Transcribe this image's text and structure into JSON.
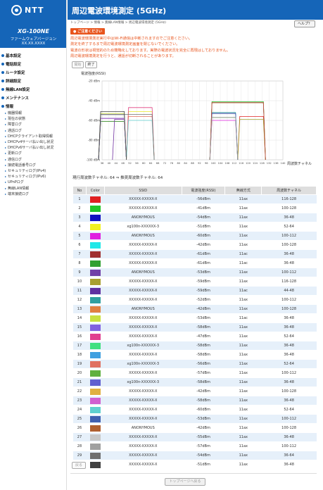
{
  "brand": {
    "logo": "NTT",
    "model": "XG-100NE",
    "fw_label": "ファームウェアバージョン",
    "fw_value": "XX.XX.XXXX"
  },
  "menu": [
    {
      "label": "基本設定"
    },
    {
      "label": "電話設定"
    },
    {
      "label": "ルータ設定"
    },
    {
      "label": "詳細設定"
    },
    {
      "label": "無線LAN設定"
    },
    {
      "label": "メンテナンス"
    },
    {
      "label": "情報"
    }
  ],
  "submenu": [
    "機器情報",
    "現在の状態",
    "障害ログ",
    "通話ログ",
    "DHCPクライアント取得情報",
    "DHCPv4サーバ払い出し状況",
    "DHCPv6サーバ払い出し状況",
    "更新ログ",
    "通信ログ",
    "接続電話番号ログ",
    "セキュリティログ(IPv4)",
    "セキュリティログ(IPv6)",
    "UPnPログ",
    "無線LAN情報",
    "端末接続ログ"
  ],
  "header": {
    "title": "周辺電波環境測定 (5GHz)",
    "breadcrumb": "トップページ > 情報 > 無線LAN情報 > 周辺電波環境測定 (5GHz)",
    "help": "ヘルプ？"
  },
  "notice": {
    "title": "ご注意ください",
    "lines": [
      "周辺電波環境測定実行中はWi-Fi通信は中断されますのでご注意ください。",
      "測定を終了するまで周辺電波環境測定画面を閉じないでください。",
      "電波の形状は視覚的のため簡略化しております。実際の電波状況を完全に再現はしておりません。",
      "周辺電波環境測定を行うと、通話が切断されることがあります。"
    ]
  },
  "controls": {
    "start": "開始",
    "end": "終了"
  },
  "chart_data": {
    "type": "area",
    "ylabel": "電波強度(RSSI)",
    "xlabel": "周波数チャネル",
    "ylim": [
      -100,
      -20
    ],
    "yticks": [
      "-20 dBm",
      "-40 dBm",
      "-60 dBm",
      "-80 dBm",
      "-100 dBm"
    ],
    "xticks": [
      "36",
      "40",
      "44",
      "48",
      "52",
      "56",
      "60",
      "64",
      "68",
      "72",
      "76",
      "80",
      "84",
      "88",
      "92",
      "96",
      "100",
      "104",
      "108",
      "112",
      "116",
      "120",
      "124",
      "128",
      "132",
      "136",
      "140"
    ],
    "series": [
      {
        "ch": [
          116,
          128
        ],
        "rssi": -56,
        "color": "#e02020"
      },
      {
        "ch": [
          100,
          128
        ],
        "rssi": -41,
        "color": "#22c52a"
      },
      {
        "ch": [
          36,
          48
        ],
        "rssi": -54,
        "color": "#1010c0"
      },
      {
        "ch": [
          52,
          64
        ],
        "rssi": -51,
        "color": "#e8e822"
      },
      {
        "ch": [
          100,
          112
        ],
        "rssi": -60,
        "color": "#e020e0"
      },
      {
        "ch": [
          100,
          128
        ],
        "rssi": -42,
        "color": "#20e0e0"
      },
      {
        "ch": [
          36,
          48
        ],
        "rssi": -61,
        "color": "#a03030"
      },
      {
        "ch": [
          36,
          48
        ],
        "rssi": -61,
        "color": "#30a030"
      },
      {
        "ch": [
          100,
          112
        ],
        "rssi": -53,
        "color": "#8040a0"
      },
      {
        "ch": [
          116,
          128
        ],
        "rssi": -59,
        "color": "#a0a030"
      },
      {
        "ch": [
          44,
          48
        ],
        "rssi": -59,
        "color": "#7030a0"
      },
      {
        "ch": [
          100,
          112
        ],
        "rssi": -52,
        "color": "#30a0a0"
      },
      {
        "ch": [
          100,
          128
        ],
        "rssi": -42,
        "color": "#e08040"
      },
      {
        "ch": [
          36,
          48
        ],
        "rssi": -53,
        "color": "#d0e040"
      },
      {
        "ch": [
          36,
          48
        ],
        "rssi": -58,
        "color": "#8080e0"
      },
      {
        "ch": [
          52,
          64
        ],
        "rssi": -47,
        "color": "#e04080"
      },
      {
        "ch": [
          36,
          48
        ],
        "rssi": -58,
        "color": "#40e080"
      },
      {
        "ch": [
          36,
          48
        ],
        "rssi": -58,
        "color": "#40a0e0"
      },
      {
        "ch": [
          52,
          64
        ],
        "rssi": -56,
        "color": "#e07060"
      },
      {
        "ch": [
          100,
          112
        ],
        "rssi": -57,
        "color": "#60b040"
      },
      {
        "ch": [
          36,
          48
        ],
        "rssi": -58,
        "color": "#6060d0"
      },
      {
        "ch": [
          100,
          128
        ],
        "rssi": -42,
        "color": "#e0b040"
      },
      {
        "ch": [
          36,
          48
        ],
        "rssi": -58,
        "color": "#d060d0"
      },
      {
        "ch": [
          52,
          64
        ],
        "rssi": -60,
        "color": "#60d0d0"
      },
      {
        "ch": [
          100,
          112
        ],
        "rssi": -53,
        "color": "#4060b0"
      },
      {
        "ch": [
          100,
          128
        ],
        "rssi": -42,
        "color": "#b04040"
      },
      {
        "ch": [
          36,
          48
        ],
        "rssi": -55,
        "color": "#c8c8c8"
      },
      {
        "ch": [
          100,
          112
        ],
        "rssi": -57,
        "color": "#a0a0a0"
      },
      {
        "ch": [
          36,
          64
        ],
        "rssi": -54,
        "color": "#707070"
      },
      {
        "ch": [
          36,
          48
        ],
        "rssi": -51,
        "color": "#404040"
      }
    ]
  },
  "channel_info": "現行周波数チャネル: 64 ⇒ 推奨周波数チャネル: 64",
  "table": {
    "headers": [
      "No",
      "Color",
      "SSID",
      "電波強度(RSSI)",
      "無線方式",
      "周波数チャネル"
    ],
    "rows": [
      {
        "no": "1",
        "color": "#e02020",
        "ssid": "XXXXX-XXXXX-X",
        "rssi": "-56dBm",
        "mode": "11ax",
        "ch": "116-128"
      },
      {
        "no": "2",
        "color": "#22c52a",
        "ssid": "XXXXX-XXXXX-X",
        "rssi": "-41dBm",
        "mode": "11ax",
        "ch": "100-128"
      },
      {
        "no": "3",
        "color": "#1010c0",
        "ssid": "ANONYMOUS",
        "rssi": "-54dBm",
        "mode": "11ax",
        "ch": "36-48"
      },
      {
        "no": "4",
        "color": "#f0f020",
        "ssid": "xg100n-XXXXXX-3",
        "rssi": "-51dBm",
        "mode": "11ax",
        "ch": "52-64"
      },
      {
        "no": "5",
        "color": "#e020e0",
        "ssid": "ANONYMOUS",
        "rssi": "-60dBm",
        "mode": "11ax",
        "ch": "100-112"
      },
      {
        "no": "6",
        "color": "#20e8e8",
        "ssid": "XXXXX-XXXXX-X",
        "rssi": "-42dBm",
        "mode": "11ax",
        "ch": "100-128"
      },
      {
        "no": "7",
        "color": "#a03030",
        "ssid": "XXXXX-XXXXX-X",
        "rssi": "-61dBm",
        "mode": "11ac",
        "ch": "36-48"
      },
      {
        "no": "8",
        "color": "#30a030",
        "ssid": "XXXXX-XXXXX-X",
        "rssi": "-61dBm",
        "mode": "11ac",
        "ch": "36-48"
      },
      {
        "no": "9",
        "color": "#7040a8",
        "ssid": "ANONYMOUS",
        "rssi": "-53dBm",
        "mode": "11ax",
        "ch": "100-112"
      },
      {
        "no": "10",
        "color": "#a8a030",
        "ssid": "XXXXX-XXXXX-X",
        "rssi": "-59dBm",
        "mode": "11ax",
        "ch": "116-128"
      },
      {
        "no": "11",
        "color": "#6030a0",
        "ssid": "XXXXX-XXXXX-X",
        "rssi": "-59dBm",
        "mode": "11ac",
        "ch": "44-48"
      },
      {
        "no": "12",
        "color": "#30a0a0",
        "ssid": "XXXXX-XXXXX-X",
        "rssi": "-52dBm",
        "mode": "11ax",
        "ch": "100-112"
      },
      {
        "no": "13",
        "color": "#e08040",
        "ssid": "ANONYMOUS",
        "rssi": "-42dBm",
        "mode": "11ax",
        "ch": "100-128"
      },
      {
        "no": "14",
        "color": "#c8e040",
        "ssid": "XXXXX-XXXXX-X",
        "rssi": "-53dBm",
        "mode": "11ac",
        "ch": "36-48"
      },
      {
        "no": "15",
        "color": "#8060e0",
        "ssid": "XXXXX-XXXXX-X",
        "rssi": "-58dBm",
        "mode": "11ax",
        "ch": "36-48"
      },
      {
        "no": "16",
        "color": "#e04090",
        "ssid": "XXXXX-XXXXX-X",
        "rssi": "-47dBm",
        "mode": "11ax",
        "ch": "52-64"
      },
      {
        "no": "17",
        "color": "#40e080",
        "ssid": "xg100n-XXXXXX-3",
        "rssi": "-58dBm",
        "mode": "11ax",
        "ch": "36-48"
      },
      {
        "no": "18",
        "color": "#40a0e0",
        "ssid": "XXXXX-XXXXX-X",
        "rssi": "-58dBm",
        "mode": "11ax",
        "ch": "36-48"
      },
      {
        "no": "19",
        "color": "#e07060",
        "ssid": "xg100n-XXXXXX-3",
        "rssi": "-56dBm",
        "mode": "11ax",
        "ch": "52-64"
      },
      {
        "no": "20",
        "color": "#60b040",
        "ssid": "XXXXX-XXXXX-X",
        "rssi": "-57dBm",
        "mode": "11ax",
        "ch": "100-112"
      },
      {
        "no": "21",
        "color": "#6060d0",
        "ssid": "xg100n-XXXXXX-3",
        "rssi": "-58dBm",
        "mode": "11ax",
        "ch": "36-48"
      },
      {
        "no": "22",
        "color": "#e0b040",
        "ssid": "XXXXX-XXXXX-X",
        "rssi": "-42dBm",
        "mode": "11ax",
        "ch": "100-128"
      },
      {
        "no": "23",
        "color": "#d060d0",
        "ssid": "XXXXX-XXXXX-X",
        "rssi": "-58dBm",
        "mode": "11ax",
        "ch": "36-48"
      },
      {
        "no": "24",
        "color": "#60d0d0",
        "ssid": "XXXXX-XXXXX-X",
        "rssi": "-60dBm",
        "mode": "11ax",
        "ch": "52-64"
      },
      {
        "no": "25",
        "color": "#4060b0",
        "ssid": "XXXXX-XXXXX-X",
        "rssi": "-53dBm",
        "mode": "11ax",
        "ch": "100-112"
      },
      {
        "no": "26",
        "color": "#b06030",
        "ssid": "ANONYMOUS",
        "rssi": "-42dBm",
        "mode": "11ax",
        "ch": "100-128"
      },
      {
        "no": "27",
        "color": "#c8c8c8",
        "ssid": "XXXXX-XXXXX-X",
        "rssi": "-55dBm",
        "mode": "11ax",
        "ch": "36-48"
      },
      {
        "no": "28",
        "color": "#a0a0a0",
        "ssid": "XXXXX-XXXXX-X",
        "rssi": "-57dBm",
        "mode": "11ax",
        "ch": "100-112"
      },
      {
        "no": "29",
        "color": "#707070",
        "ssid": "XXXXX-XXXXX-X",
        "rssi": "-54dBm",
        "mode": "11ax",
        "ch": "36-64"
      },
      {
        "no": "30",
        "color": "#404040",
        "ssid": "XXXXX-XXXXX-X",
        "rssi": "-51dBm",
        "mode": "11ax",
        "ch": "36-48"
      }
    ]
  },
  "footer": {
    "back": "戻る",
    "top": "トップページへ戻る"
  }
}
